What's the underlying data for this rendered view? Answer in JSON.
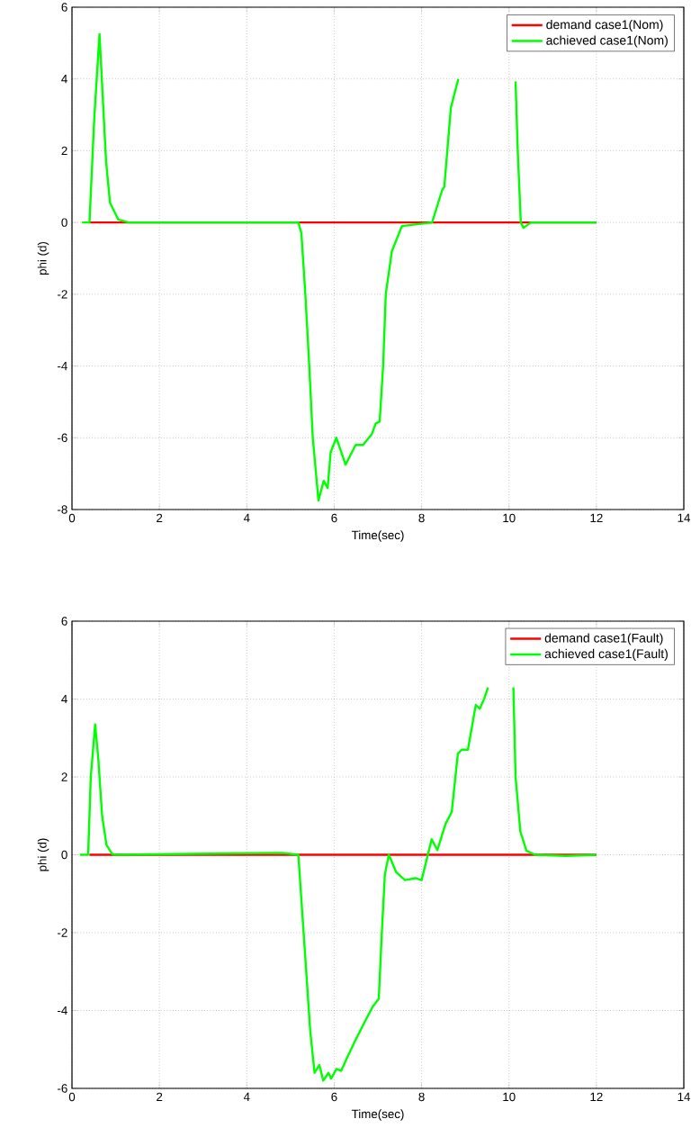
{
  "chart_data": [
    {
      "type": "line",
      "xlabel": "Time(sec)",
      "ylabel": "phi (d)",
      "xlim": [
        0,
        14
      ],
      "ylim": [
        -8,
        6
      ],
      "xticks": [
        0,
        2,
        4,
        6,
        8,
        10,
        12,
        14
      ],
      "yticks": [
        -8,
        -6,
        -4,
        -2,
        0,
        2,
        4,
        6
      ],
      "grid": true,
      "legend": "top right",
      "line_style": "solid",
      "series": [
        {
          "name": "demand case1(Nom)",
          "color": "#ff0000",
          "x": [
            0.4,
            12
          ],
          "values": [
            0,
            0
          ]
        },
        {
          "name": "achieved case1(Nom)",
          "color": "#00ff00",
          "x": [
            0.23,
            0.4,
            0.51,
            0.63,
            0.78,
            0.87,
            1.06,
            1.3,
            5.18,
            5.25,
            5.34,
            5.43,
            5.51,
            5.64,
            5.76,
            5.85,
            5.92,
            6.05,
            6.26,
            6.49,
            6.66,
            6.86,
            6.95,
            7.04,
            7.12,
            7.18,
            7.32,
            7.55,
            8.24,
            8.47,
            8.52,
            8.67,
            8.84,
            9.5,
            10.15,
            10.2,
            10.27,
            10.33,
            10.5,
            12
          ],
          "values": [
            0,
            0,
            2.9,
            5.25,
            1.7,
            0.55,
            0.08,
            0,
            0,
            -0.3,
            -2.0,
            -4.0,
            -6.0,
            -7.75,
            -7.2,
            -7.4,
            -6.4,
            -6.0,
            -6.75,
            -6.2,
            -6.2,
            -5.9,
            -5.6,
            -5.55,
            -4.0,
            -2.0,
            -0.8,
            -0.1,
            0,
            0.9,
            1.0,
            3.2,
            4.0,
            null,
            3.93,
            2.0,
            0,
            -0.15,
            0,
            0
          ]
        }
      ]
    },
    {
      "type": "line",
      "xlabel": "Time(sec)",
      "ylabel": "phi (d)",
      "xlim": [
        0,
        14
      ],
      "ylim": [
        -6,
        6
      ],
      "xticks": [
        0,
        2,
        4,
        6,
        8,
        10,
        12,
        14
      ],
      "yticks": [
        -6,
        -4,
        -2,
        0,
        2,
        4,
        6
      ],
      "grid": true,
      "legend": "top right",
      "line_style": "solid",
      "series": [
        {
          "name": "demand case1(Fault)",
          "color": "#ff0000",
          "x": [
            0.4,
            12
          ],
          "values": [
            0,
            0
          ]
        },
        {
          "name": "achieved case1(Fault)",
          "color": "#00ff00",
          "x": [
            0.18,
            0.37,
            0.43,
            0.53,
            0.6,
            0.69,
            0.79,
            0.92,
            1.0,
            4.8,
            5.18,
            5.24,
            5.33,
            5.45,
            5.55,
            5.66,
            5.75,
            5.87,
            5.93,
            6.05,
            6.16,
            6.28,
            6.47,
            6.65,
            6.88,
            7.02,
            7.09,
            7.16,
            7.25,
            7.42,
            7.62,
            7.86,
            8.0,
            8.23,
            8.36,
            8.55,
            8.69,
            8.83,
            8.92,
            9.06,
            9.24,
            9.33,
            9.43,
            9.52,
            9.8,
            10.1,
            10.15,
            10.26,
            10.4,
            10.6,
            11.3,
            12
          ],
          "values": [
            0,
            0,
            2.0,
            3.35,
            2.5,
            1.0,
            0.25,
            0.02,
            0,
            0.05,
            0,
            -1.0,
            -2.5,
            -4.5,
            -5.6,
            -5.4,
            -5.8,
            -5.6,
            -5.75,
            -5.5,
            -5.55,
            -5.25,
            -4.8,
            -4.4,
            -3.9,
            -3.7,
            -2.0,
            -0.5,
            0,
            -0.45,
            -0.65,
            -0.6,
            -0.65,
            0.4,
            0.12,
            0.8,
            1.1,
            2.6,
            2.7,
            2.7,
            3.85,
            3.75,
            4.0,
            4.3,
            null,
            4.3,
            2.0,
            0.6,
            0.1,
            0,
            -0.03,
            0
          ]
        }
      ]
    }
  ]
}
